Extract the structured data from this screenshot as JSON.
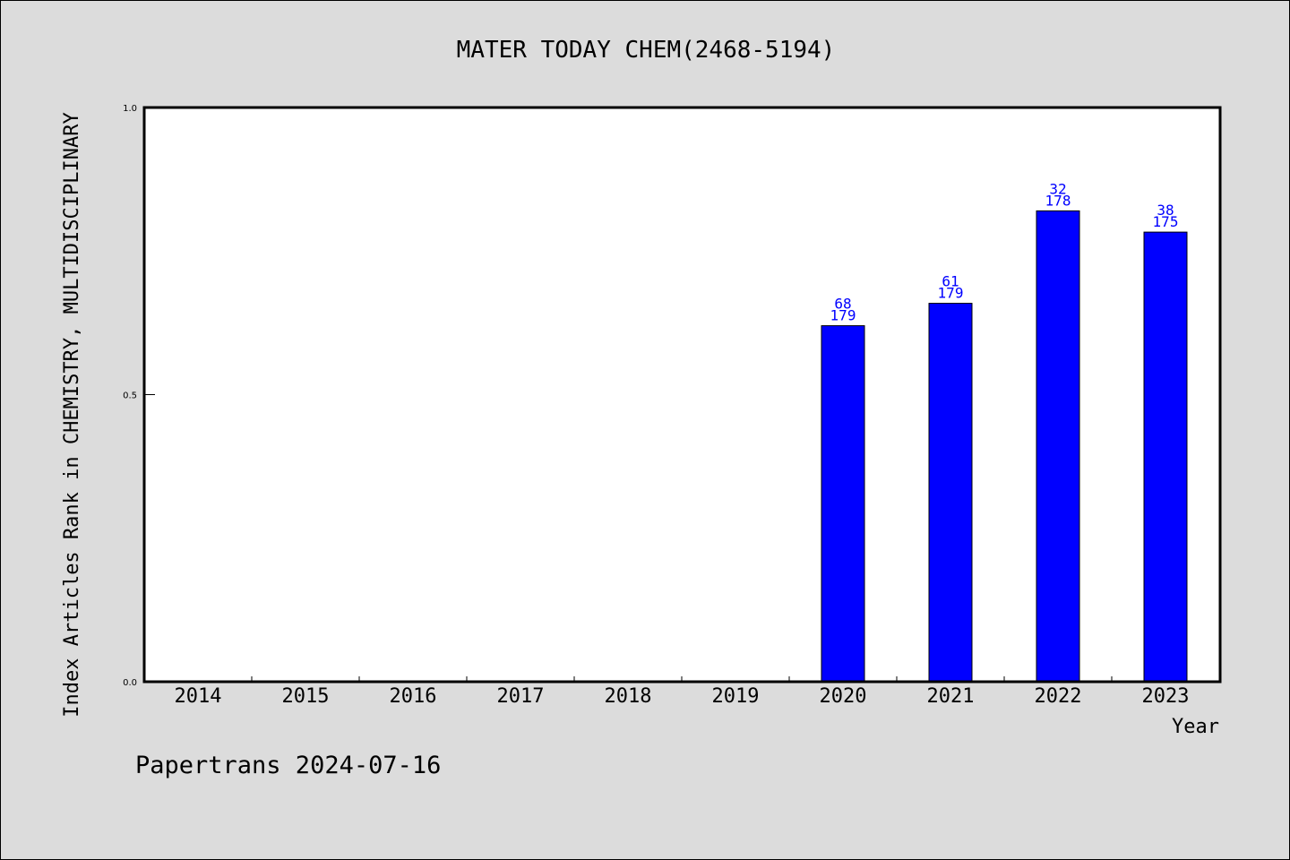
{
  "chart_data": {
    "type": "bar",
    "title": "MATER TODAY CHEM(2468-5194)",
    "xlabel": "Year",
    "ylabel": "Index Articles Rank in CHEMISTRY, MULTIDISCIPLINARY",
    "categories": [
      "2014",
      "2015",
      "2016",
      "2017",
      "2018",
      "2019",
      "2020",
      "2021",
      "2022",
      "2023"
    ],
    "values": [
      null,
      null,
      null,
      null,
      null,
      null,
      0.62,
      0.659,
      0.82,
      0.783
    ],
    "bar_labels": [
      null,
      null,
      null,
      null,
      null,
      null,
      {
        "rank": "68",
        "total": "179"
      },
      {
        "rank": "61",
        "total": "179"
      },
      {
        "rank": "32",
        "total": "178"
      },
      {
        "rank": "38",
        "total": "175"
      }
    ],
    "ylim": [
      0,
      1
    ],
    "yticks": [
      "0.0",
      "0.5",
      "1.0"
    ],
    "grid": false,
    "bar_color": "#0000ff",
    "label_color": "#0000ff",
    "plot_background": "#ffffff",
    "page_background": "#dcdcdc"
  },
  "footer": {
    "text": "Papertrans 2024-07-16"
  }
}
